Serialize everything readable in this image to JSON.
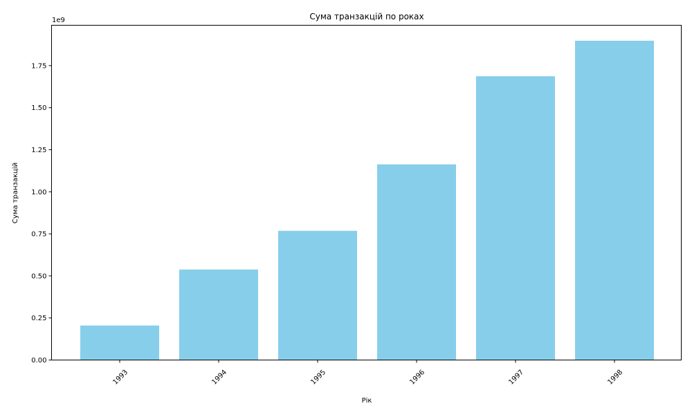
{
  "chart_data": {
    "type": "bar",
    "title": "Сума транзакцій по роках",
    "xlabel": "Рік",
    "ylabel": "Сума транзакцій",
    "categories": [
      "1993",
      "1994",
      "1995",
      "1996",
      "1997",
      "1998"
    ],
    "values": [
      205000000,
      538000000,
      768000000,
      1163000000,
      1687000000,
      1898000000
    ],
    "ylim": [
      0,
      1990000000
    ],
    "yticks": [
      0,
      250000000,
      500000000,
      750000000,
      1000000000,
      1250000000,
      1500000000,
      1750000000
    ],
    "ytick_labels": [
      "0.00",
      "0.25",
      "0.50",
      "0.75",
      "1.00",
      "1.25",
      "1.50",
      "1.75"
    ],
    "y_offset_label": "1e9",
    "bar_color": "#87CEEB",
    "grid": false,
    "xtick_rotation": "45 degrees"
  }
}
